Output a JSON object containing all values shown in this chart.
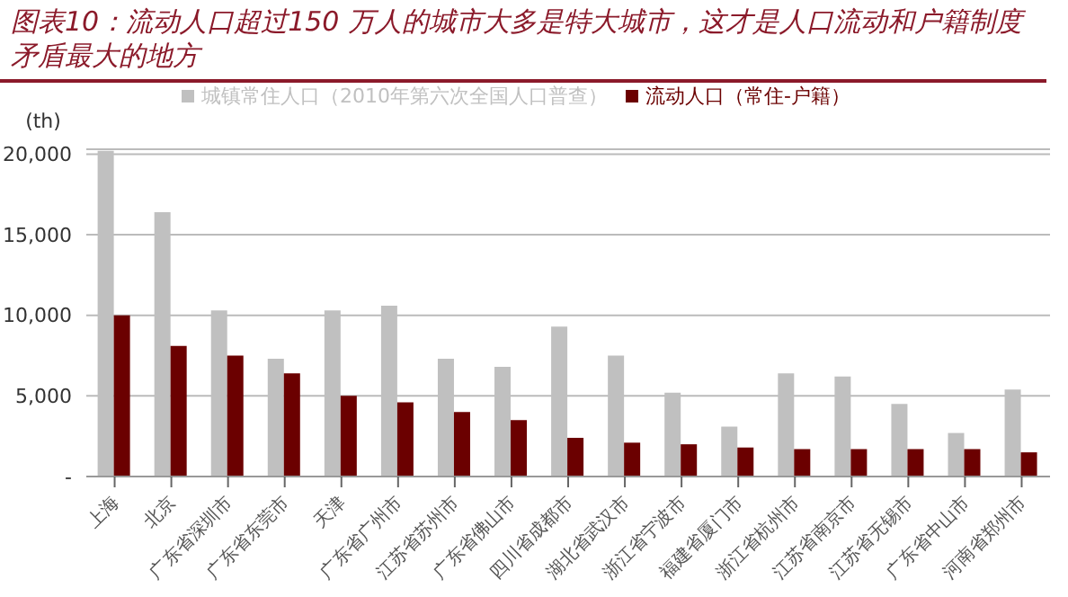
{
  "chart_data": {
    "type": "bar",
    "title": "图表10：流动人口超过150 万人的城市大多是特大城市，这才是人口流动和户籍制度矛盾最大的地方",
    "ylabel": "(th)",
    "categories": [
      "上海",
      "北京",
      "广东省深圳市",
      "广东省东莞市",
      "天津",
      "广东省广州市",
      "江苏省苏州市",
      "广东省佛山市",
      "四川省成都市",
      "湖北省武汉市",
      "浙江省宁波市",
      "福建省厦门市",
      "浙江省杭州市",
      "江苏省南京市",
      "江苏省无锡市",
      "广东省中山市",
      "河南省郑州市"
    ],
    "series": [
      {
        "name": "城镇常住人口（2010年第六次全国人口普查）",
        "color": "#c0c0c0",
        "values": [
          20200,
          16400,
          10300,
          7300,
          10300,
          10600,
          7300,
          6800,
          9300,
          7500,
          5200,
          3100,
          6400,
          6200,
          4500,
          2700,
          5400
        ]
      },
      {
        "name": "流动人口（常住-户籍）",
        "color": "#6b0000",
        "values": [
          10000,
          8100,
          7500,
          6400,
          5000,
          4600,
          4000,
          3500,
          2400,
          2100,
          2000,
          1800,
          1700,
          1700,
          1700,
          1700,
          1500
        ]
      }
    ],
    "ylim": [
      0,
      20300
    ],
    "yticks": [
      {
        "value": 0,
        "label": "-"
      },
      {
        "value": 5000,
        "label": "5,000"
      },
      {
        "value": 10000,
        "label": "10,000"
      },
      {
        "value": 15000,
        "label": "15,000"
      },
      {
        "value": 20000,
        "label": "20,000"
      }
    ],
    "grid": "y",
    "legend": "top"
  }
}
